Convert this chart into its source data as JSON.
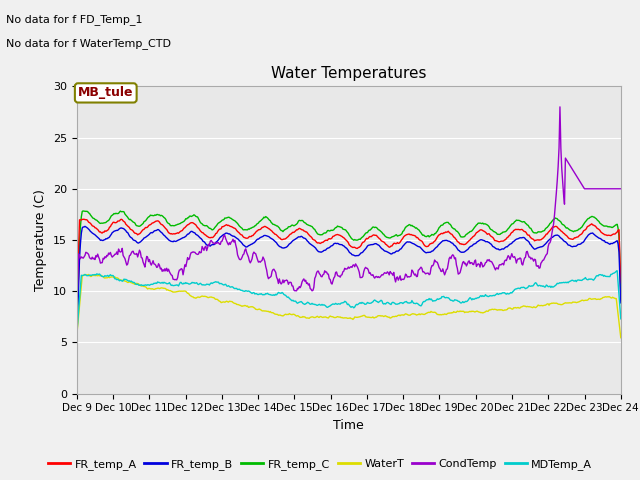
{
  "title": "Water Temperatures",
  "xlabel": "Time",
  "ylabel": "Temperature (C)",
  "ylim": [
    0,
    30
  ],
  "yticks": [
    0,
    5,
    10,
    15,
    20,
    25,
    30
  ],
  "annotations": [
    "No data for f FD_Temp_1",
    "No data for f WaterTemp_CTD"
  ],
  "mb_tule_label": "MB_tule",
  "x_tick_labels": [
    "Dec 9",
    "Dec 10",
    "Dec 11",
    "Dec 12",
    "Dec 13",
    "Dec 14",
    "Dec 15",
    "Dec 16",
    "Dec 17",
    "Dec 18",
    "Dec 19",
    "Dec 20",
    "Dec 21",
    "Dec 22",
    "Dec 23",
    "Dec 24"
  ],
  "series": {
    "FR_temp_A": {
      "color": "#ff0000",
      "lw": 1.0
    },
    "FR_temp_B": {
      "color": "#0000dd",
      "lw": 1.0
    },
    "FR_temp_C": {
      "color": "#00bb00",
      "lw": 1.0
    },
    "WaterT": {
      "color": "#dddd00",
      "lw": 1.0
    },
    "CondTemp": {
      "color": "#9900cc",
      "lw": 1.0
    },
    "MDTemp_A": {
      "color": "#00cccc",
      "lw": 1.0
    }
  },
  "background_color": "#f0f0f0",
  "plot_bg_color": "#e8e8e8",
  "n_points": 600
}
